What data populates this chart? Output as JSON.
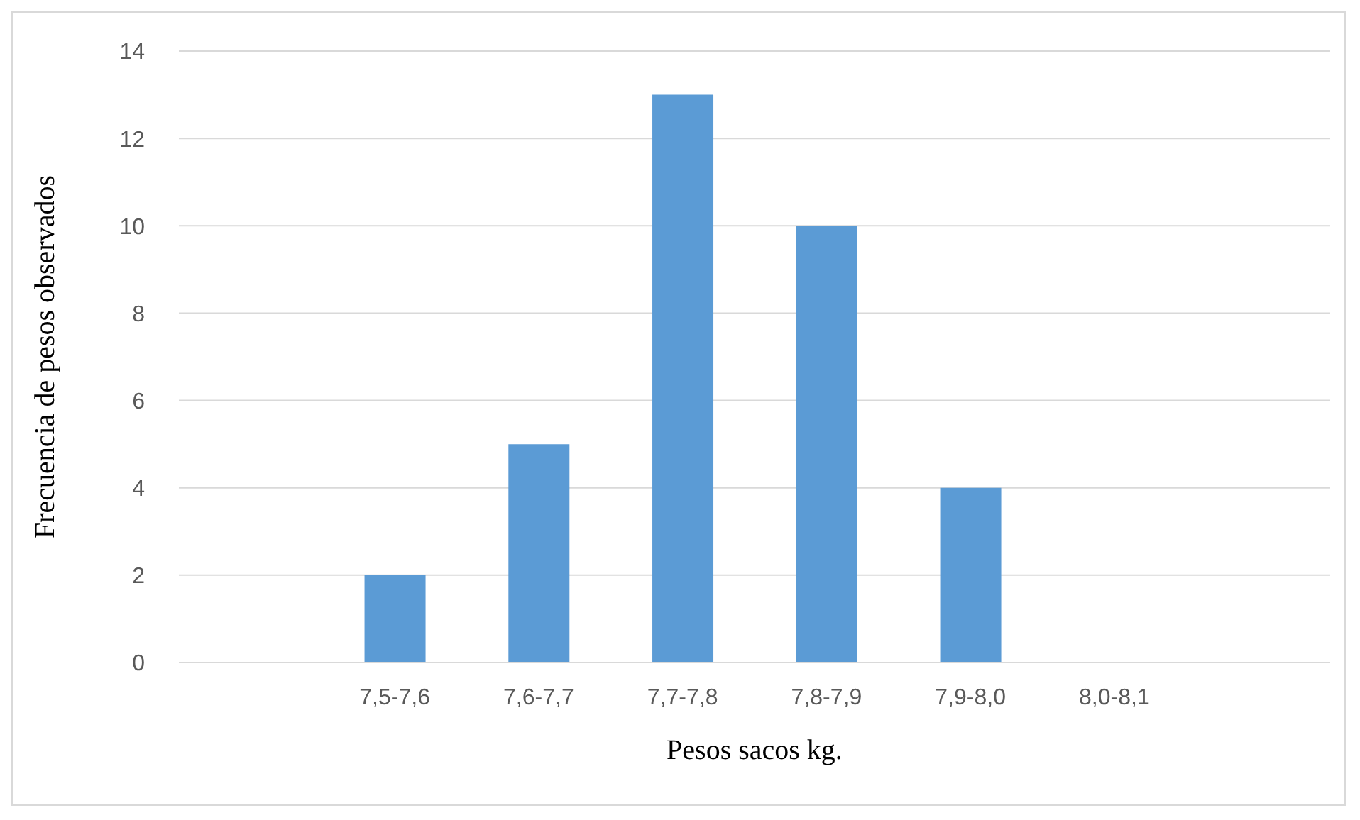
{
  "chart_data": {
    "type": "bar",
    "xlabel": "Pesos sacos kg.",
    "ylabel": "Frecuencia de pesos observados",
    "categories": [
      null,
      "7,5-7,6",
      "7,6-7,7",
      "7,7-7,8",
      "7,8-7,9",
      "7,9-8,0",
      "8,0-8,1",
      null
    ],
    "values": [
      null,
      2,
      5,
      13,
      10,
      4,
      0,
      null
    ],
    "color": "#5b9bd5",
    "ylim": [
      0,
      14
    ],
    "yticks": [
      0,
      2,
      4,
      6,
      8,
      10,
      12,
      14
    ],
    "grid": "y"
  }
}
